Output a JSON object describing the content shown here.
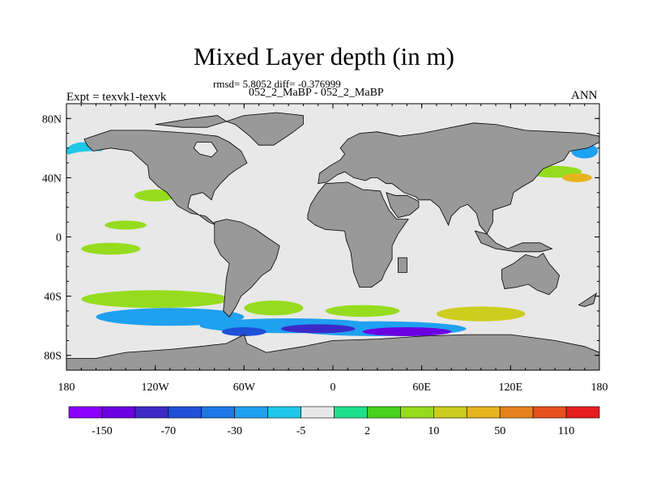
{
  "figure": {
    "title": "Mixed Layer depth (in m)",
    "stats_line": "rmsd= 5.8052 diff= -0.376999",
    "cases_line": "052_2_MaBP - 052_2_MaBP",
    "experiment_label": "Expt = texvk1-texvk",
    "season_label": "ANN"
  },
  "map": {
    "projection": "cylindrical equidistant",
    "lon_range": [
      -180,
      180
    ],
    "lat_range": [
      -90,
      90
    ],
    "x_ticks": [
      {
        "lon": -180,
        "label": "180"
      },
      {
        "lon": -120,
        "label": "120W"
      },
      {
        "lon": -60,
        "label": "60W"
      },
      {
        "lon": 0,
        "label": "0"
      },
      {
        "lon": 60,
        "label": "60E"
      },
      {
        "lon": 120,
        "label": "120E"
      },
      {
        "lon": 180,
        "label": "180"
      }
    ],
    "y_ticks": [
      {
        "lat": 80,
        "label": "80N"
      },
      {
        "lat": 40,
        "label": "40N"
      },
      {
        "lat": 0,
        "label": "0"
      },
      {
        "lat": -40,
        "label": "40S"
      },
      {
        "lat": -80,
        "label": "80S"
      }
    ],
    "land_color": "#999999",
    "ocean_background_color": "#e8e8e8",
    "land": [
      {
        "name": "north-america",
        "points": [
          [
            -168,
            66
          ],
          [
            -150,
            72
          ],
          [
            -125,
            72
          ],
          [
            -95,
            70
          ],
          [
            -78,
            68
          ],
          [
            -70,
            64
          ],
          [
            -62,
            58
          ],
          [
            -58,
            50
          ],
          [
            -66,
            45
          ],
          [
            -70,
            42
          ],
          [
            -76,
            36
          ],
          [
            -80,
            31
          ],
          [
            -82,
            25
          ],
          [
            -88,
            30
          ],
          [
            -96,
            28
          ],
          [
            -98,
            20
          ],
          [
            -92,
            16
          ],
          [
            -84,
            10
          ],
          [
            -79,
            8
          ],
          [
            -86,
            14
          ],
          [
            -96,
            16
          ],
          [
            -105,
            21
          ],
          [
            -112,
            30
          ],
          [
            -118,
            34
          ],
          [
            -124,
            40
          ],
          [
            -125,
            48
          ],
          [
            -136,
            58
          ],
          [
            -150,
            60
          ],
          [
            -162,
            58
          ],
          [
            -166,
            62
          ]
        ]
      },
      {
        "name": "greenland",
        "points": [
          [
            -72,
            78
          ],
          [
            -60,
            82
          ],
          [
            -38,
            84
          ],
          [
            -20,
            82
          ],
          [
            -20,
            76
          ],
          [
            -28,
            70
          ],
          [
            -40,
            62
          ],
          [
            -50,
            62
          ],
          [
            -56,
            68
          ],
          [
            -66,
            76
          ]
        ]
      },
      {
        "name": "arctic-islands",
        "points": [
          [
            -120,
            76
          ],
          [
            -95,
            80
          ],
          [
            -78,
            82
          ],
          [
            -72,
            78
          ],
          [
            -85,
            74
          ],
          [
            -102,
            74
          ]
        ]
      },
      {
        "name": "hudson-bay",
        "points": [
          [
            -92,
            64
          ],
          [
            -82,
            64
          ],
          [
            -78,
            58
          ],
          [
            -82,
            54
          ],
          [
            -90,
            56
          ],
          [
            -94,
            60
          ]
        ],
        "ocean": true
      },
      {
        "name": "south-america",
        "points": [
          [
            -80,
            10
          ],
          [
            -72,
            12
          ],
          [
            -62,
            10
          ],
          [
            -52,
            5
          ],
          [
            -45,
            0
          ],
          [
            -36,
            -6
          ],
          [
            -38,
            -14
          ],
          [
            -42,
            -22
          ],
          [
            -48,
            -26
          ],
          [
            -55,
            -34
          ],
          [
            -62,
            -40
          ],
          [
            -66,
            -48
          ],
          [
            -70,
            -54
          ],
          [
            -74,
            -50
          ],
          [
            -73,
            -40
          ],
          [
            -72,
            -28
          ],
          [
            -70,
            -18
          ],
          [
            -76,
            -12
          ],
          [
            -80,
            -4
          ],
          [
            -80,
            2
          ]
        ]
      },
      {
        "name": "europe-asia",
        "points": [
          [
            -10,
            36
          ],
          [
            -9,
            43
          ],
          [
            -2,
            48
          ],
          [
            5,
            52
          ],
          [
            8,
            56
          ],
          [
            5,
            60
          ],
          [
            10,
            66
          ],
          [
            18,
            70
          ],
          [
            30,
            71
          ],
          [
            45,
            68
          ],
          [
            60,
            70
          ],
          [
            75,
            73
          ],
          [
            95,
            77
          ],
          [
            110,
            76
          ],
          [
            130,
            72
          ],
          [
            150,
            71
          ],
          [
            170,
            70
          ],
          [
            180,
            68
          ],
          [
            180,
            64
          ],
          [
            172,
            60
          ],
          [
            160,
            58
          ],
          [
            156,
            52
          ],
          [
            142,
            46
          ],
          [
            135,
            38
          ],
          [
            128,
            34
          ],
          [
            122,
            30
          ],
          [
            120,
            22
          ],
          [
            108,
            18
          ],
          [
            108,
            10
          ],
          [
            104,
            2
          ],
          [
            99,
            8
          ],
          [
            97,
            16
          ],
          [
            91,
            22
          ],
          [
            86,
            20
          ],
          [
            80,
            14
          ],
          [
            78,
            8
          ],
          [
            72,
            20
          ],
          [
            66,
            25
          ],
          [
            58,
            25
          ],
          [
            56,
            27
          ],
          [
            48,
            30
          ],
          [
            40,
            36
          ],
          [
            36,
            36
          ],
          [
            30,
            40
          ],
          [
            26,
            40
          ],
          [
            22,
            38
          ],
          [
            14,
            40
          ],
          [
            8,
            44
          ],
          [
            3,
            42
          ],
          [
            -4,
            37
          ]
        ]
      },
      {
        "name": "africa",
        "points": [
          [
            -17,
            15
          ],
          [
            -15,
            22
          ],
          [
            -10,
            30
          ],
          [
            -5,
            36
          ],
          [
            10,
            37
          ],
          [
            20,
            32
          ],
          [
            32,
            31
          ],
          [
            34,
            26
          ],
          [
            38,
            18
          ],
          [
            43,
            12
          ],
          [
            51,
            12
          ],
          [
            44,
            2
          ],
          [
            40,
            -6
          ],
          [
            40,
            -15
          ],
          [
            35,
            -24
          ],
          [
            33,
            -29
          ],
          [
            26,
            -34
          ],
          [
            18,
            -34
          ],
          [
            14,
            -24
          ],
          [
            12,
            -10
          ],
          [
            9,
            -2
          ],
          [
            8,
            4
          ],
          [
            -5,
            5
          ],
          [
            -12,
            8
          ],
          [
            -17,
            12
          ]
        ]
      },
      {
        "name": "arabia",
        "points": [
          [
            36,
            30
          ],
          [
            42,
            28
          ],
          [
            50,
            28
          ],
          [
            58,
            24
          ],
          [
            58,
            20
          ],
          [
            52,
            15
          ],
          [
            44,
            13
          ],
          [
            39,
            20
          ]
        ]
      },
      {
        "name": "madagascar",
        "points": [
          [
            44,
            -14
          ],
          [
            50,
            -14
          ],
          [
            50,
            -24
          ],
          [
            44,
            -24
          ]
        ]
      },
      {
        "name": "indonesia",
        "points": [
          [
            96,
            4
          ],
          [
            104,
            2
          ],
          [
            110,
            -4
          ],
          [
            118,
            -8
          ],
          [
            128,
            -4
          ],
          [
            140,
            -4
          ],
          [
            148,
            -8
          ],
          [
            140,
            -10
          ],
          [
            124,
            -10
          ],
          [
            110,
            -8
          ],
          [
            100,
            -4
          ]
        ]
      },
      {
        "name": "australia",
        "points": [
          [
            114,
            -22
          ],
          [
            122,
            -18
          ],
          [
            130,
            -12
          ],
          [
            138,
            -14
          ],
          [
            142,
            -11
          ],
          [
            146,
            -18
          ],
          [
            153,
            -26
          ],
          [
            151,
            -34
          ],
          [
            146,
            -39
          ],
          [
            138,
            -36
          ],
          [
            132,
            -32
          ],
          [
            124,
            -34
          ],
          [
            116,
            -35
          ],
          [
            114,
            -28
          ]
        ]
      },
      {
        "name": "new-zealand",
        "points": [
          [
            166,
            -46
          ],
          [
            172,
            -42
          ],
          [
            178,
            -38
          ],
          [
            176,
            -45
          ],
          [
            170,
            -47
          ]
        ]
      },
      {
        "name": "antarctica",
        "points": [
          [
            -180,
            -90
          ],
          [
            -180,
            -82
          ],
          [
            -160,
            -82
          ],
          [
            -140,
            -78
          ],
          [
            -110,
            -76
          ],
          [
            -90,
            -74
          ],
          [
            -72,
            -72
          ],
          [
            -60,
            -66
          ],
          [
            -58,
            -72
          ],
          [
            -45,
            -78
          ],
          [
            -20,
            -74
          ],
          [
            0,
            -70
          ],
          [
            30,
            -69
          ],
          [
            60,
            -67
          ],
          [
            90,
            -66
          ],
          [
            120,
            -66
          ],
          [
            150,
            -70
          ],
          [
            170,
            -74
          ],
          [
            180,
            -78
          ],
          [
            180,
            -90
          ]
        ]
      }
    ],
    "anomaly_patches": [
      {
        "lon": -168,
        "lat": 58,
        "rx": 12,
        "ry": 6,
        "value": -20
      },
      {
        "lon": -160,
        "lat": 54,
        "rx": 20,
        "ry": 4,
        "value": -5
      },
      {
        "lon": -48,
        "lat": 72,
        "rx": 8,
        "ry": 4,
        "value": -5
      },
      {
        "lon": 170,
        "lat": 58,
        "rx": 9,
        "ry": 5,
        "value": -30
      },
      {
        "lon": 150,
        "lat": 44,
        "rx": 18,
        "ry": 4,
        "value": 5
      },
      {
        "lon": 165,
        "lat": 40,
        "rx": 10,
        "ry": 3,
        "value": 20
      },
      {
        "lon": -120,
        "lat": 28,
        "rx": 14,
        "ry": 4,
        "value": 5
      },
      {
        "lon": -140,
        "lat": 8,
        "rx": 14,
        "ry": 3,
        "value": 5
      },
      {
        "lon": -150,
        "lat": -8,
        "rx": 20,
        "ry": 4,
        "value": 5
      },
      {
        "lon": -120,
        "lat": -42,
        "rx": 50,
        "ry": 6,
        "value": 5
      },
      {
        "lon": -110,
        "lat": -54,
        "rx": 50,
        "ry": 6,
        "value": -30
      },
      {
        "lon": -40,
        "lat": -48,
        "rx": 20,
        "ry": 5,
        "value": 5
      },
      {
        "lon": 20,
        "lat": -50,
        "rx": 25,
        "ry": 4,
        "value": 5
      },
      {
        "lon": 100,
        "lat": -52,
        "rx": 30,
        "ry": 5,
        "value": 10
      },
      {
        "lon": -30,
        "lat": -60,
        "rx": 60,
        "ry": 5,
        "value": -30
      },
      {
        "lon": 30,
        "lat": -62,
        "rx": 60,
        "ry": 5,
        "value": -30
      },
      {
        "lon": -10,
        "lat": -62,
        "rx": 25,
        "ry": 3,
        "value": -100
      },
      {
        "lon": 50,
        "lat": -64,
        "rx": 30,
        "ry": 3,
        "value": -150
      },
      {
        "lon": -60,
        "lat": -64,
        "rx": 15,
        "ry": 3,
        "value": -70
      }
    ]
  },
  "colorbar": {
    "colors": [
      "#8c00ff",
      "#6a00e0",
      "#3c2ac8",
      "#1f50d8",
      "#1f78e8",
      "#1fa0f0",
      "#1fc8e8",
      "#e8e8e8",
      "#1ee08c",
      "#46d21e",
      "#96dc1e",
      "#cdcd1e",
      "#e6b41e",
      "#e6821e",
      "#e6501e",
      "#e61e1e"
    ],
    "labels": [
      "-150",
      "-70",
      "-30",
      "-5",
      "2",
      "10",
      "50",
      "110"
    ],
    "levels": [
      -150,
      -100,
      -70,
      -50,
      -30,
      -20,
      -5,
      -2,
      2,
      5,
      10,
      20,
      50,
      70,
      110
    ]
  }
}
